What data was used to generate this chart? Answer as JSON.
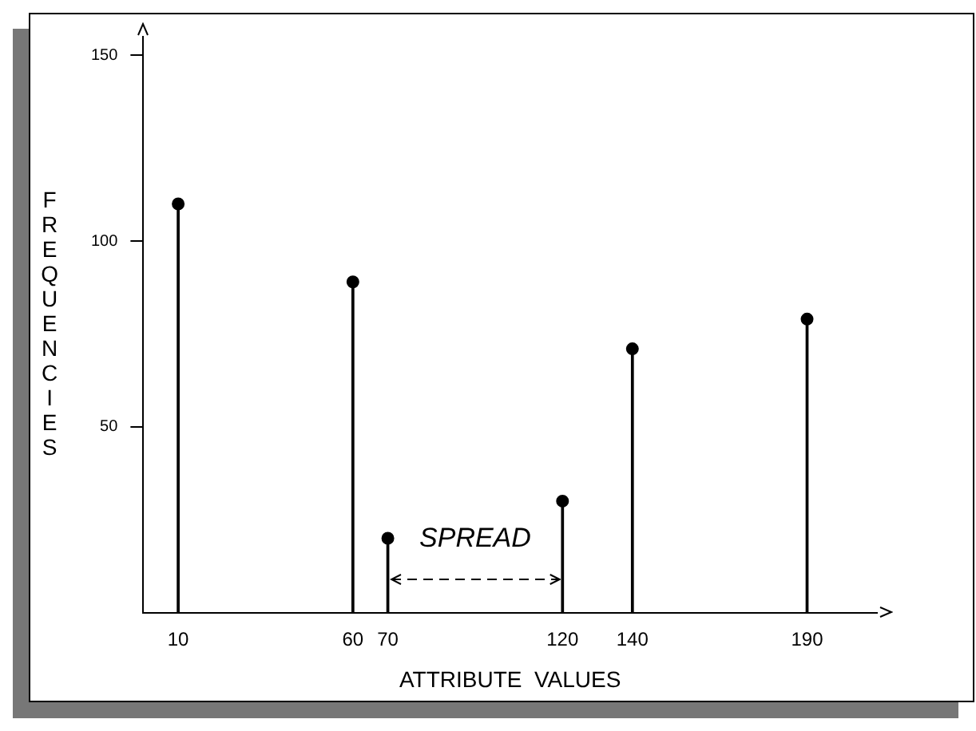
{
  "chart_data": {
    "type": "lollipop",
    "xlabel": "ATTRIBUTE  VALUES",
    "ylabel": "FREQUENCIES",
    "x": [
      10,
      60,
      70,
      120,
      140,
      190
    ],
    "values": [
      110,
      89,
      20,
      30,
      71,
      79
    ],
    "color": "#000000",
    "marker": "circle",
    "xlim": [
      0,
      210
    ],
    "xticks": [
      10,
      60,
      70,
      120,
      140,
      190
    ],
    "ylim": [
      0,
      155
    ],
    "yticks": [
      50,
      100,
      150
    ],
    "grid": false,
    "legend": false,
    "annotations": [
      "SPREAD"
    ]
  }
}
